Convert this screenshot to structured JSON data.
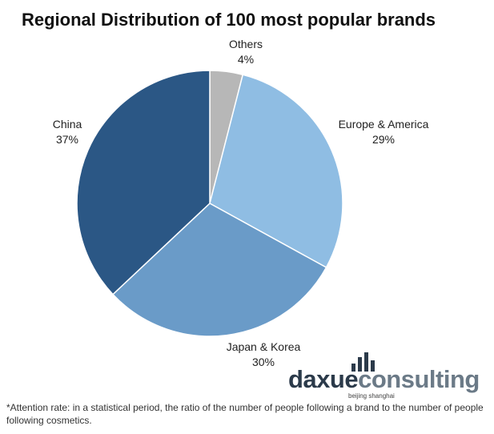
{
  "chart_data": {
    "type": "pie",
    "title": "Regional Distribution of 100 most popular brands",
    "slices": [
      {
        "label": "Others",
        "value": 4,
        "value_label": "4%",
        "color": "#b7b7b7"
      },
      {
        "label": "Europe & America",
        "value": 29,
        "value_label": "29%",
        "color": "#8fbde3"
      },
      {
        "label": "Japan & Korea",
        "value": 30,
        "value_label": "30%",
        "color": "#6a9bc8"
      },
      {
        "label": "China",
        "value": 37,
        "value_label": "37%",
        "color": "#2b5785"
      }
    ],
    "start": "top",
    "direction": "clockwise",
    "legend": "none"
  },
  "logo": {
    "word_dark": "daxue",
    "word_light": "consulting",
    "tagline": "beijing shanghai"
  },
  "footnote": "*Attention rate: in a statistical period, the ratio of the number of people following a brand to the number of people following cosmetics."
}
